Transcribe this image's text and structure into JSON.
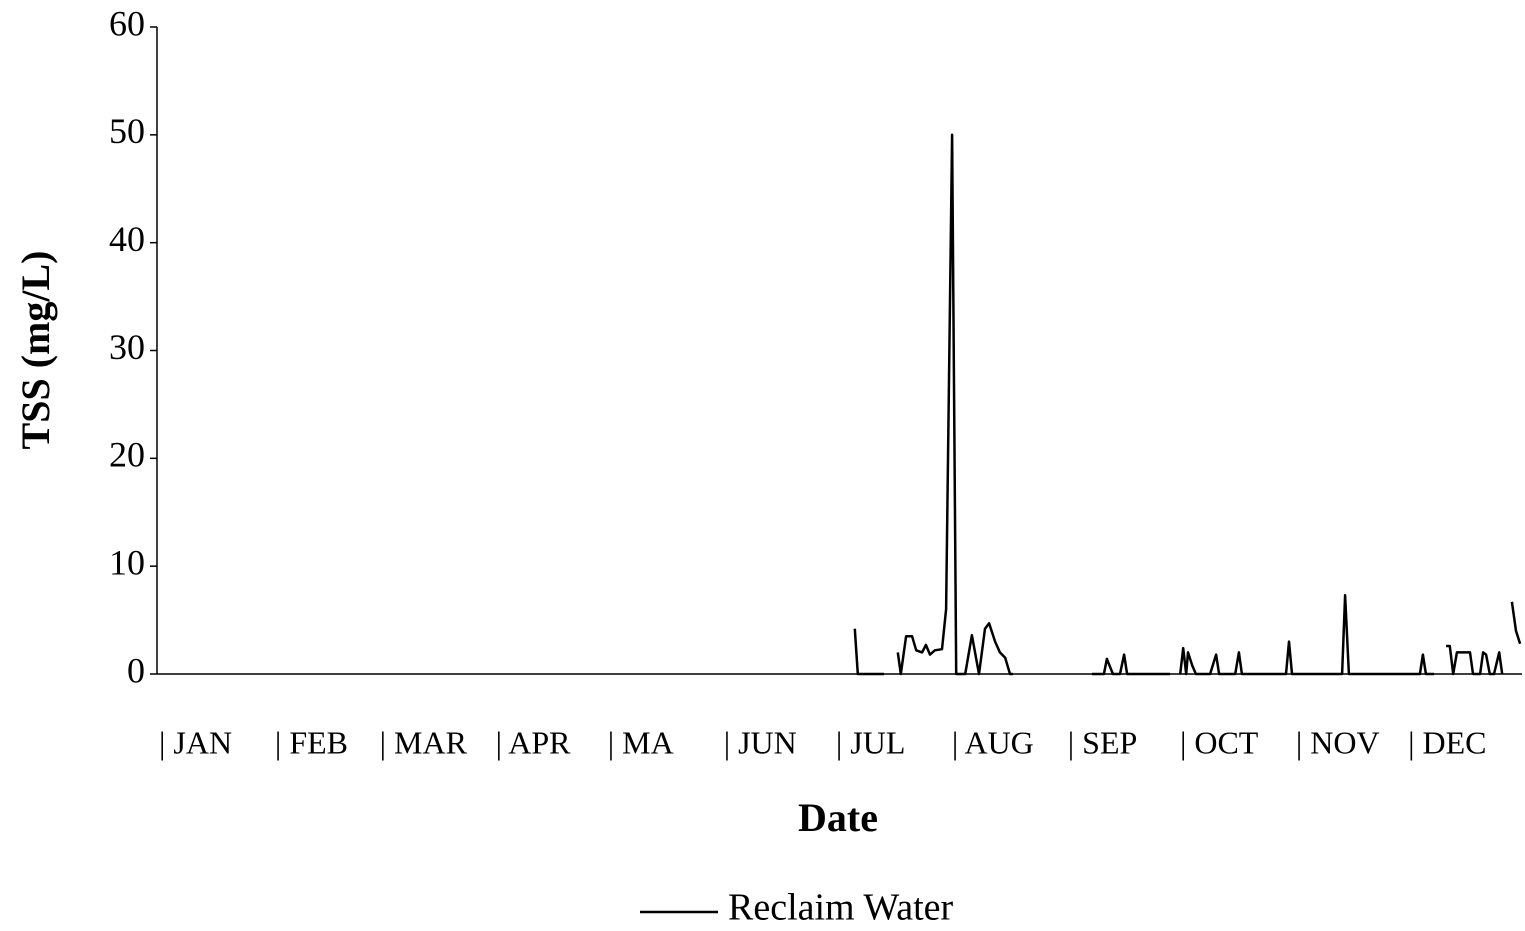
{
  "chart_data": {
    "type": "line",
    "x_label": "Date",
    "y_label": "TSS (mg/L)",
    "x": [
      186.6,
      187.4,
      194.4,
      null,
      198.1,
      198.9,
      200.3,
      201.9,
      203.0,
      204.6,
      205.6,
      206.7,
      208.0,
      209.9,
      211.0,
      212.6,
      213.7,
      216.1,
      217.9,
      219.8,
      221.4,
      222.5,
      224.1,
      225.4,
      226.8,
      228.1,
      228.9,
      null,
      250.0,
      253.2,
      254.0,
      255.6,
      257.5,
      258.6,
      259.4,
      270.9,
      null,
      273.6,
      274.4,
      275.2,
      275.7,
      276.8,
      277.8,
      281.6,
      283.2,
      284.0,
      288.3,
      289.3,
      290.1,
      301.9,
      302.7,
      303.5,
      316.9,
      317.7,
      318.7,
      337.7,
      338.5,
      339.3,
      341.5,
      null,
      344.7,
      345.7,
      346.6,
      347.6,
      351.1,
      351.9,
      353.8,
      354.6,
      355.4,
      356.4,
      357.5,
      358.9,
      359.7,
      null,
      362.3,
      363.4,
      364.5
    ],
    "series": [
      {
        "name": "Reclaim Water",
        "color": "#000000",
        "values": [
          4.2,
          0,
          0,
          null,
          2.0,
          0,
          3.5,
          3.5,
          2.2,
          2.0,
          2.7,
          1.8,
          2.2,
          2.3,
          6.0,
          50.0,
          0,
          0,
          3.6,
          0,
          4.2,
          4.7,
          3.0,
          2.0,
          1.5,
          0,
          0,
          null,
          0,
          0,
          1.4,
          0,
          0,
          1.8,
          0,
          0,
          null,
          0,
          2.4,
          0,
          2.0,
          0.8,
          0,
          0,
          1.8,
          0,
          0,
          2.0,
          0,
          0,
          3.0,
          0,
          0,
          7.3,
          0,
          0,
          1.8,
          0,
          0,
          null,
          2.6,
          2.6,
          0,
          2.0,
          2.0,
          0,
          0,
          2.0,
          1.8,
          0,
          0,
          2.0,
          0,
          null,
          6.7,
          4.0,
          2.8
        ]
      }
    ],
    "xlim": [
      0,
      365
    ],
    "xticks": [
      {
        "value": 0,
        "label": "| JAN"
      },
      {
        "value": 31,
        "label": "| FEB"
      },
      {
        "value": 59,
        "label": "| MAR"
      },
      {
        "value": 90,
        "label": "| APR"
      },
      {
        "value": 120,
        "label": "| MA"
      },
      {
        "value": 151,
        "label": "| JUN"
      },
      {
        "value": 181,
        "label": "| JUL"
      },
      {
        "value": 212,
        "label": "| AUG"
      },
      {
        "value": 243,
        "label": "| SEP"
      },
      {
        "value": 273,
        "label": "| OCT"
      },
      {
        "value": 304,
        "label": "| NOV"
      },
      {
        "value": 334,
        "label": "| DEC"
      }
    ],
    "ylim": [
      0,
      60
    ],
    "yticks": [
      0,
      10,
      20,
      30,
      40,
      50,
      60
    ],
    "grid": false,
    "legend": "bottom"
  }
}
